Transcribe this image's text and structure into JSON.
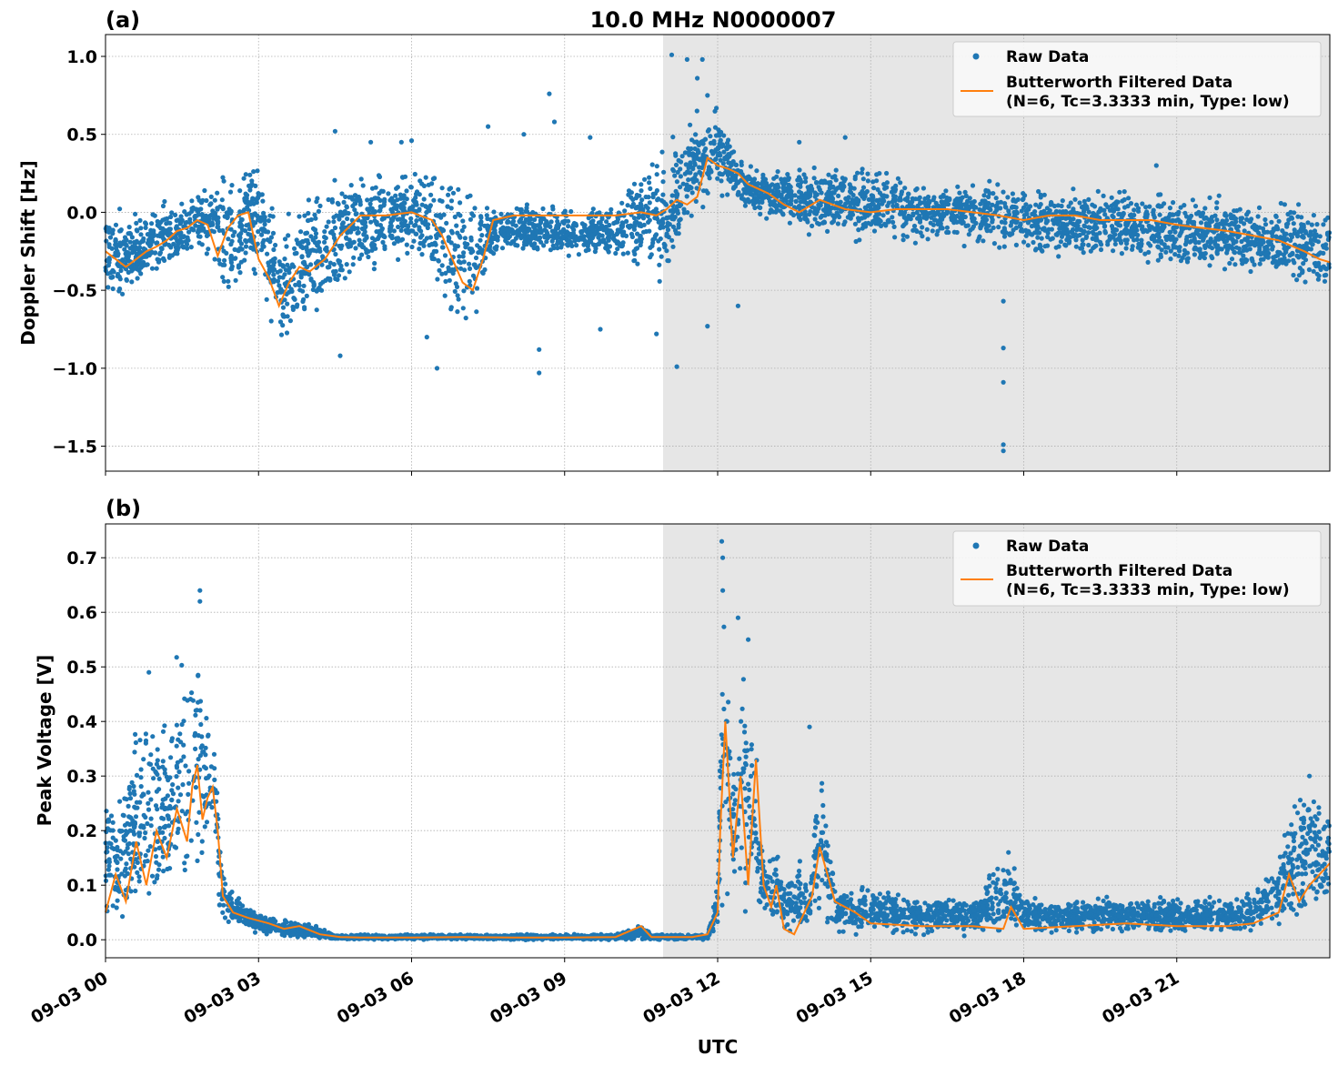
{
  "figure": {
    "title": "10.0 MHz N0000007",
    "xlabel": "UTC",
    "shaded_region": {
      "from_hour": 10.93,
      "to_hour": 24.0,
      "color": "#e6e6e6"
    },
    "colors": {
      "raw": "#1f77b4",
      "filtered": "#ff7f0e"
    }
  },
  "chart_data": [
    {
      "type": "scatter",
      "panel_label": "(a)",
      "title": "10.0 MHz N0000007",
      "xlabel": "",
      "ylabel": "Doppler Shift [Hz]",
      "x_unit": "hours since 09-03 00 UTC",
      "xlim": [
        0,
        24
      ],
      "ylim": [
        -1.66,
        1.14
      ],
      "x_ticks": [
        0,
        3,
        6,
        9,
        12,
        15,
        18,
        21
      ],
      "x_tick_labels": [
        "09-03 00",
        "09-03 03",
        "09-03 06",
        "09-03 09",
        "09-03 12",
        "09-03 15",
        "09-03 18",
        "09-03 21"
      ],
      "y_ticks": [
        1.0,
        0.5,
        0.0,
        -0.5,
        -1.0,
        -1.5
      ],
      "y_tick_labels": [
        "1.0",
        "0.5",
        "0.0",
        "−0.5",
        "−1.0",
        "−1.5"
      ],
      "grid": true,
      "legend": {
        "placement": "top-right",
        "entries": [
          {
            "label": "Raw Data",
            "marker": "dot"
          },
          {
            "label": "Butterworth Filtered Data",
            "label2": "(N=6, Tc=3.3333 min, Type: low)",
            "marker": "line"
          }
        ]
      },
      "series": [
        {
          "name": "Raw Data",
          "envelope": {
            "x": [
              0,
              0.5,
              1,
              1.5,
              2,
              2.5,
              3,
              3.3,
              3.5,
              4,
              4.5,
              5,
              5.5,
              6,
              6.5,
              7,
              7.3,
              7.5,
              8,
              9,
              10,
              10.5,
              11,
              11.5,
              12,
              12.5,
              13,
              14,
              15,
              16,
              17,
              18,
              19,
              20,
              21,
              22,
              23,
              24
            ],
            "upper": [
              0.05,
              0.0,
              0.05,
              0.12,
              0.18,
              0.28,
              0.38,
              0.1,
              -0.1,
              0.15,
              0.3,
              0.3,
              0.28,
              0.28,
              0.28,
              0.26,
              0.2,
              0.05,
              0.05,
              0.05,
              0.05,
              0.35,
              0.45,
              0.6,
              0.68,
              0.3,
              0.28,
              0.3,
              0.3,
              0.22,
              0.2,
              0.2,
              0.18,
              0.15,
              0.12,
              0.1,
              0.08,
              0.05
            ],
            "lower": [
              -0.6,
              -0.5,
              -0.45,
              -0.35,
              -0.3,
              -0.6,
              -0.4,
              -0.85,
              -0.9,
              -0.72,
              -0.65,
              -0.45,
              -0.35,
              -0.3,
              -0.6,
              -0.78,
              -0.72,
              -0.3,
              -0.28,
              -0.3,
              -0.3,
              -0.4,
              -0.5,
              -0.05,
              0.1,
              0.05,
              -0.05,
              -0.15,
              -0.2,
              -0.2,
              -0.2,
              -0.3,
              -0.3,
              -0.3,
              -0.35,
              -0.4,
              -0.45,
              -0.55
            ]
          },
          "outliers": [
            [
              4.5,
              0.52
            ],
            [
              5.2,
              0.45
            ],
            [
              5.8,
              0.45
            ],
            [
              6.0,
              0.46
            ],
            [
              7.5,
              0.55
            ],
            [
              8.2,
              0.5
            ],
            [
              8.7,
              0.76
            ],
            [
              8.8,
              0.58
            ],
            [
              9.5,
              0.48
            ],
            [
              11.1,
              1.01
            ],
            [
              11.4,
              0.98
            ],
            [
              11.6,
              0.86
            ],
            [
              11.7,
              0.98
            ],
            [
              11.8,
              0.75
            ],
            [
              6.3,
              -0.8
            ],
            [
              6.5,
              -1.0
            ],
            [
              4.6,
              -0.92
            ],
            [
              8.5,
              -0.88
            ],
            [
              8.5,
              -1.03
            ],
            [
              9.7,
              -0.75
            ],
            [
              10.8,
              -0.78
            ],
            [
              11.2,
              -0.99
            ],
            [
              11.8,
              -0.73
            ],
            [
              12.4,
              -0.6
            ],
            [
              17.6,
              -0.57
            ],
            [
              17.6,
              -0.87
            ],
            [
              17.6,
              -1.09
            ],
            [
              17.6,
              -1.49
            ],
            [
              17.6,
              -1.53
            ],
            [
              20.6,
              0.3
            ],
            [
              13.6,
              0.45
            ],
            [
              14.5,
              0.48
            ]
          ]
        },
        {
          "name": "Butterworth Filtered Data",
          "x": [
            0,
            0.2,
            0.4,
            0.6,
            0.8,
            1.0,
            1.2,
            1.4,
            1.6,
            1.8,
            2.0,
            2.2,
            2.4,
            2.6,
            2.8,
            3.0,
            3.2,
            3.4,
            3.6,
            3.8,
            4.0,
            4.3,
            4.6,
            5.0,
            5.5,
            6.0,
            6.4,
            6.6,
            6.8,
            7.0,
            7.2,
            7.4,
            7.6,
            8.0,
            8.5,
            9.0,
            9.5,
            10.0,
            10.5,
            10.8,
            11.0,
            11.2,
            11.4,
            11.6,
            11.8,
            12.0,
            12.2,
            12.4,
            12.6,
            12.8,
            13.0,
            13.3,
            13.6,
            14.0,
            14.5,
            15.0,
            15.5,
            16.0,
            16.5,
            17.0,
            17.5,
            18.0,
            18.5,
            19.0,
            19.5,
            20.0,
            20.5,
            21.0,
            21.5,
            22.0,
            22.5,
            23.0,
            23.5,
            23.8,
            24.0
          ],
          "y": [
            -0.25,
            -0.3,
            -0.35,
            -0.3,
            -0.25,
            -0.22,
            -0.18,
            -0.12,
            -0.1,
            -0.05,
            -0.08,
            -0.28,
            -0.1,
            -0.02,
            0.0,
            -0.3,
            -0.42,
            -0.6,
            -0.45,
            -0.35,
            -0.38,
            -0.3,
            -0.15,
            -0.02,
            -0.02,
            0.0,
            -0.05,
            -0.15,
            -0.3,
            -0.45,
            -0.5,
            -0.3,
            -0.05,
            -0.02,
            -0.02,
            -0.02,
            -0.02,
            -0.02,
            0.0,
            -0.02,
            0.02,
            0.08,
            0.05,
            0.1,
            0.35,
            0.3,
            0.28,
            0.25,
            0.18,
            0.15,
            0.12,
            0.05,
            0.0,
            0.08,
            0.02,
            0.0,
            0.02,
            0.02,
            0.02,
            0.0,
            -0.02,
            -0.05,
            -0.02,
            -0.02,
            -0.05,
            -0.05,
            -0.05,
            -0.08,
            -0.1,
            -0.12,
            -0.15,
            -0.18,
            -0.25,
            -0.3,
            -0.32
          ]
        }
      ]
    },
    {
      "type": "scatter",
      "panel_label": "(b)",
      "title": "",
      "xlabel": "UTC",
      "ylabel": "Peak Voltage [V]",
      "x_unit": "hours since 09-03 00 UTC",
      "xlim": [
        0,
        24
      ],
      "ylim": [
        -0.033,
        0.762
      ],
      "x_ticks": [
        0,
        3,
        6,
        9,
        12,
        15,
        18,
        21
      ],
      "x_tick_labels": [
        "09-03 00",
        "09-03 03",
        "09-03 06",
        "09-03 09",
        "09-03 12",
        "09-03 15",
        "09-03 18",
        "09-03 21"
      ],
      "y_ticks": [
        0.7,
        0.6,
        0.5,
        0.4,
        0.3,
        0.2,
        0.1,
        0.0
      ],
      "y_tick_labels": [
        "0.7",
        "0.6",
        "0.5",
        "0.4",
        "0.3",
        "0.2",
        "0.1",
        "0.0"
      ],
      "grid": true,
      "legend": {
        "placement": "top-right",
        "entries": [
          {
            "label": "Raw Data",
            "marker": "dot"
          },
          {
            "label": "Butterworth Filtered Data",
            "label2": "(N=6, Tc=3.3333 min, Type: low)",
            "marker": "line"
          }
        ]
      },
      "series": [
        {
          "name": "Raw Data",
          "envelope": {
            "x": [
              0,
              0.3,
              0.6,
              0.9,
              1.2,
              1.5,
              1.8,
              2.1,
              2.3,
              2.6,
              3.0,
              3.5,
              4.0,
              4.5,
              5,
              6,
              7,
              8,
              9,
              10,
              10.5,
              10.7,
              11,
              11.5,
              11.8,
              12.0,
              12.1,
              12.3,
              12.5,
              12.7,
              12.9,
              13.1,
              13.3,
              13.6,
              13.8,
              14.0,
              14.3,
              15,
              16,
              17,
              17.7,
              18,
              19,
              20,
              21,
              22,
              22.5,
              23,
              23.3,
              23.6,
              24
            ],
            "upper": [
              0.3,
              0.25,
              0.4,
              0.48,
              0.38,
              0.58,
              0.55,
              0.45,
              0.12,
              0.08,
              0.05,
              0.04,
              0.03,
              0.01,
              0.01,
              0.01,
              0.01,
              0.01,
              0.01,
              0.01,
              0.03,
              0.01,
              0.01,
              0.01,
              0.01,
              0.1,
              0.72,
              0.3,
              0.58,
              0.45,
              0.15,
              0.2,
              0.1,
              0.15,
              0.1,
              0.38,
              0.1,
              0.1,
              0.08,
              0.08,
              0.16,
              0.08,
              0.08,
              0.08,
              0.08,
              0.08,
              0.1,
              0.15,
              0.28,
              0.3,
              0.24
            ],
            "lower": [
              0.02,
              0.04,
              0.03,
              0.03,
              0.03,
              0.05,
              0.08,
              0.1,
              0.03,
              0.02,
              0.01,
              0.0,
              0.0,
              0.0,
              0.0,
              0.0,
              0.0,
              0.0,
              0.0,
              0.0,
              0.0,
              0.0,
              0.0,
              0.0,
              0.0,
              0.02,
              0.05,
              0.05,
              0.05,
              0.05,
              0.02,
              0.02,
              0.01,
              0.01,
              0.02,
              0.02,
              0.01,
              0.01,
              0.01,
              0.01,
              0.01,
              0.01,
              0.01,
              0.01,
              0.01,
              0.01,
              0.01,
              0.02,
              0.02,
              0.03,
              0.04
            ]
          },
          "outliers": [
            [
              1.85,
              0.64
            ],
            [
              1.85,
              0.62
            ],
            [
              0.85,
              0.49
            ],
            [
              12.08,
              0.73
            ],
            [
              12.1,
              0.7
            ],
            [
              12.1,
              0.64
            ],
            [
              12.4,
              0.59
            ],
            [
              12.6,
              0.55
            ],
            [
              13.8,
              0.39
            ],
            [
              17.7,
              0.16
            ],
            [
              23.6,
              0.3
            ]
          ]
        },
        {
          "name": "Butterworth Filtered Data",
          "x": [
            0,
            0.2,
            0.4,
            0.6,
            0.8,
            1.0,
            1.2,
            1.4,
            1.6,
            1.7,
            1.8,
            1.9,
            2.0,
            2.1,
            2.2,
            2.3,
            2.5,
            2.8,
            3.2,
            3.5,
            3.8,
            4.2,
            4.6,
            5,
            6,
            7,
            8,
            9,
            10,
            10.5,
            10.7,
            11,
            11.5,
            11.8,
            12.0,
            12.05,
            12.15,
            12.3,
            12.45,
            12.6,
            12.75,
            12.9,
            13.05,
            13.15,
            13.3,
            13.5,
            13.7,
            13.85,
            14.0,
            14.3,
            14.7,
            15,
            16,
            17,
            17.6,
            17.75,
            18,
            19,
            20,
            21,
            22,
            22.5,
            23,
            23.2,
            23.4,
            23.6,
            23.8,
            24
          ],
          "y": [
            0.05,
            0.12,
            0.07,
            0.18,
            0.1,
            0.2,
            0.15,
            0.24,
            0.18,
            0.28,
            0.32,
            0.22,
            0.26,
            0.28,
            0.2,
            0.08,
            0.05,
            0.04,
            0.03,
            0.02,
            0.025,
            0.01,
            0.005,
            0.004,
            0.004,
            0.005,
            0.004,
            0.004,
            0.005,
            0.025,
            0.005,
            0.005,
            0.005,
            0.01,
            0.05,
            0.2,
            0.4,
            0.15,
            0.3,
            0.1,
            0.33,
            0.1,
            0.06,
            0.1,
            0.02,
            0.01,
            0.05,
            0.08,
            0.17,
            0.07,
            0.05,
            0.03,
            0.025,
            0.025,
            0.02,
            0.06,
            0.02,
            0.025,
            0.03,
            0.025,
            0.025,
            0.03,
            0.05,
            0.12,
            0.07,
            0.1,
            0.12,
            0.14
          ]
        }
      ]
    }
  ]
}
